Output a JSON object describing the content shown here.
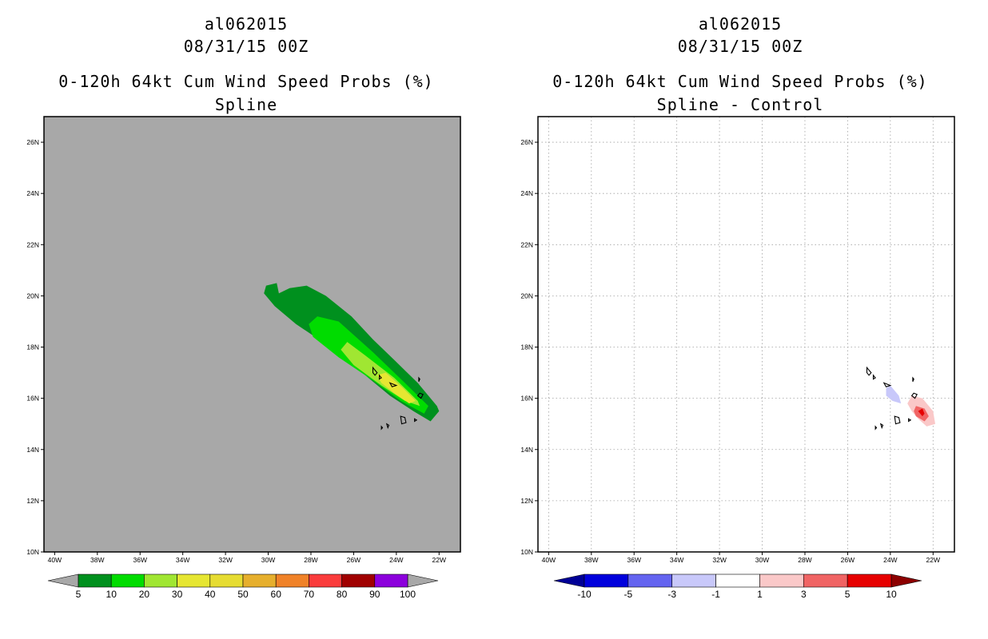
{
  "chart_data": [
    {
      "type": "heatmap",
      "storm_id": "al062015",
      "valid_time": "08/31/15 00Z",
      "title": "0-120h 64kt Cum Wind Speed Probs (%)",
      "subtitle": "Spline",
      "xlabel": "",
      "ylabel": "",
      "xlim": [
        -40.5,
        -21
      ],
      "ylim": [
        10,
        27
      ],
      "x_ticks": [
        "40W",
        "38W",
        "36W",
        "34W",
        "32W",
        "30W",
        "28W",
        "26W",
        "24W",
        "22W"
      ],
      "y_ticks": [
        "10N",
        "12N",
        "14N",
        "16N",
        "18N",
        "20N",
        "22N",
        "24N",
        "26N"
      ],
      "grid": false,
      "background_color": "#a8a8a8",
      "colorbar": {
        "labels": [
          "5",
          "10",
          "20",
          "30",
          "40",
          "50",
          "60",
          "70",
          "80",
          "90",
          "100"
        ],
        "colors": [
          "#00901e",
          "#00dc00",
          "#a0e632",
          "#e6e632",
          "#e6dc32",
          "#e6af2d",
          "#f08228",
          "#fa3c3c",
          "#a00000",
          "#8c00dc"
        ],
        "arrow_low": "#a8a8a8",
        "arrow_high": "#a8a8a8"
      },
      "contours": [
        {
          "level": 5,
          "color": "#00901e",
          "points": [
            [
              -30.2,
              20.1
            ],
            [
              -30.1,
              20.4
            ],
            [
              -29.6,
              20.5
            ],
            [
              -29.5,
              20.1
            ],
            [
              -29.0,
              20.3
            ],
            [
              -28.2,
              20.4
            ],
            [
              -27.3,
              20.0
            ],
            [
              -26.1,
              19.2
            ],
            [
              -25.1,
              18.3
            ],
            [
              -24.1,
              17.5
            ],
            [
              -23.0,
              16.6
            ],
            [
              -22.1,
              15.7
            ],
            [
              -22.0,
              15.5
            ],
            [
              -22.4,
              15.1
            ],
            [
              -23.2,
              15.5
            ],
            [
              -24.3,
              16.1
            ],
            [
              -25.6,
              17.0
            ],
            [
              -27.1,
              18.0
            ],
            [
              -28.7,
              18.9
            ],
            [
              -29.7,
              19.6
            ]
          ]
        },
        {
          "level": 10,
          "color": "#00dc00",
          "points": [
            [
              -28.1,
              18.9
            ],
            [
              -27.7,
              19.2
            ],
            [
              -26.7,
              19.0
            ],
            [
              -25.1,
              17.8
            ],
            [
              -23.6,
              16.6
            ],
            [
              -22.5,
              15.7
            ],
            [
              -22.7,
              15.4
            ],
            [
              -23.8,
              15.9
            ],
            [
              -25.1,
              16.7
            ],
            [
              -26.7,
              17.6
            ],
            [
              -27.9,
              18.4
            ]
          ]
        },
        {
          "level": 20,
          "color": "#a0e632",
          "points": [
            [
              -26.6,
              17.9
            ],
            [
              -26.3,
              18.2
            ],
            [
              -25.5,
              17.7
            ],
            [
              -24.1,
              16.8
            ],
            [
              -23.0,
              15.9
            ],
            [
              -22.9,
              15.7
            ],
            [
              -23.6,
              15.9
            ],
            [
              -24.7,
              16.5
            ],
            [
              -26.0,
              17.3
            ]
          ]
        },
        {
          "level": 30,
          "color": "#e6e632",
          "points": [
            [
              -24.9,
              16.9
            ],
            [
              -24.5,
              17.0
            ],
            [
              -23.7,
              16.4
            ],
            [
              -23.1,
              15.9
            ],
            [
              -23.4,
              15.8
            ],
            [
              -24.1,
              16.2
            ],
            [
              -24.7,
              16.6
            ]
          ]
        }
      ],
      "islands": [
        [
          [
            -25.1,
            17.2
          ],
          [
            -25.0,
            17.1
          ],
          [
            -24.9,
            17.0
          ],
          [
            -25.0,
            16.9
          ],
          [
            -25.1,
            17.0
          ]
        ],
        [
          [
            -24.8,
            16.9
          ],
          [
            -24.7,
            16.8
          ],
          [
            -24.8,
            16.75
          ]
        ],
        [
          [
            -24.3,
            16.6
          ],
          [
            -24.0,
            16.5
          ],
          [
            -24.2,
            16.45
          ]
        ],
        [
          [
            -22.95,
            16.8
          ],
          [
            -22.9,
            16.75
          ],
          [
            -22.95,
            16.65
          ]
        ],
        [
          [
            -22.9,
            16.2
          ],
          [
            -22.75,
            16.15
          ],
          [
            -22.85,
            16.0
          ],
          [
            -23.0,
            16.1
          ]
        ],
        [
          [
            -23.8,
            15.3
          ],
          [
            -23.6,
            15.25
          ],
          [
            -23.55,
            15.05
          ],
          [
            -23.75,
            15.0
          ]
        ],
        [
          [
            -23.15,
            15.2
          ],
          [
            -23.05,
            15.15
          ],
          [
            -23.15,
            15.1
          ]
        ],
        [
          [
            -24.45,
            15.0
          ],
          [
            -24.35,
            14.95
          ],
          [
            -24.4,
            14.85
          ]
        ],
        [
          [
            -24.7,
            14.9
          ],
          [
            -24.65,
            14.85
          ],
          [
            -24.7,
            14.8
          ]
        ]
      ]
    },
    {
      "type": "heatmap",
      "storm_id": "al062015",
      "valid_time": "08/31/15 00Z",
      "title": "0-120h 64kt Cum Wind Speed Probs (%)",
      "subtitle": "Spline - Control",
      "xlabel": "",
      "ylabel": "",
      "xlim": [
        -40.5,
        -21
      ],
      "ylim": [
        10,
        27
      ],
      "x_ticks": [
        "40W",
        "38W",
        "36W",
        "34W",
        "32W",
        "30W",
        "28W",
        "26W",
        "24W",
        "22W"
      ],
      "y_ticks": [
        "10N",
        "12N",
        "14N",
        "16N",
        "18N",
        "20N",
        "22N",
        "24N",
        "26N"
      ],
      "grid": true,
      "background_color": "#ffffff",
      "colorbar": {
        "labels": [
          "-10",
          "-5",
          "-3",
          "-1",
          "1",
          "3",
          "5",
          "10"
        ],
        "colors": [
          "#0000dc",
          "#6464f0",
          "#c8c8fa",
          "#ffffff",
          "#fac8c8",
          "#f06464",
          "#e60000"
        ],
        "arrow_low": "#000096",
        "arrow_high": "#8c0000"
      },
      "contours": [
        {
          "level": -1,
          "color": "#c8c8fa",
          "points": [
            [
              -24.2,
              16.4
            ],
            [
              -24.0,
              16.5
            ],
            [
              -23.6,
              16.1
            ],
            [
              -23.5,
              15.8
            ],
            [
              -23.9,
              15.9
            ],
            [
              -24.2,
              16.1
            ]
          ]
        },
        {
          "level": 1,
          "color": "#fac8c8",
          "points": [
            [
              -23.0,
              16.1
            ],
            [
              -22.5,
              16.0
            ],
            [
              -22.0,
              15.5
            ],
            [
              -21.9,
              15.0
            ],
            [
              -22.3,
              14.9
            ],
            [
              -22.7,
              15.2
            ],
            [
              -23.0,
              15.5
            ],
            [
              -23.2,
              15.8
            ]
          ]
        },
        {
          "level": 3,
          "color": "#f06464",
          "points": [
            [
              -22.8,
              15.7
            ],
            [
              -22.4,
              15.6
            ],
            [
              -22.2,
              15.3
            ],
            [
              -22.4,
              15.1
            ],
            [
              -22.8,
              15.3
            ],
            [
              -22.9,
              15.5
            ]
          ]
        },
        {
          "level": 5,
          "color": "#e60000",
          "points": [
            [
              -22.7,
              15.5
            ],
            [
              -22.5,
              15.6
            ],
            [
              -22.4,
              15.4
            ],
            [
              -22.5,
              15.3
            ]
          ]
        }
      ],
      "islands": [
        [
          [
            -25.1,
            17.2
          ],
          [
            -25.0,
            17.1
          ],
          [
            -24.9,
            17.0
          ],
          [
            -25.0,
            16.9
          ],
          [
            -25.1,
            17.0
          ]
        ],
        [
          [
            -24.8,
            16.9
          ],
          [
            -24.7,
            16.8
          ],
          [
            -24.8,
            16.75
          ]
        ],
        [
          [
            -24.3,
            16.6
          ],
          [
            -24.0,
            16.5
          ],
          [
            -24.2,
            16.45
          ]
        ],
        [
          [
            -22.95,
            16.8
          ],
          [
            -22.9,
            16.75
          ],
          [
            -22.95,
            16.65
          ]
        ],
        [
          [
            -22.9,
            16.2
          ],
          [
            -22.75,
            16.15
          ],
          [
            -22.85,
            16.0
          ],
          [
            -23.0,
            16.1
          ]
        ],
        [
          [
            -23.8,
            15.3
          ],
          [
            -23.6,
            15.25
          ],
          [
            -23.55,
            15.05
          ],
          [
            -23.75,
            15.0
          ]
        ],
        [
          [
            -23.15,
            15.2
          ],
          [
            -23.05,
            15.15
          ],
          [
            -23.15,
            15.1
          ]
        ],
        [
          [
            -24.45,
            15.0
          ],
          [
            -24.35,
            14.95
          ],
          [
            -24.4,
            14.85
          ]
        ],
        [
          [
            -24.7,
            14.9
          ],
          [
            -24.65,
            14.85
          ],
          [
            -24.7,
            14.8
          ]
        ]
      ]
    }
  ]
}
